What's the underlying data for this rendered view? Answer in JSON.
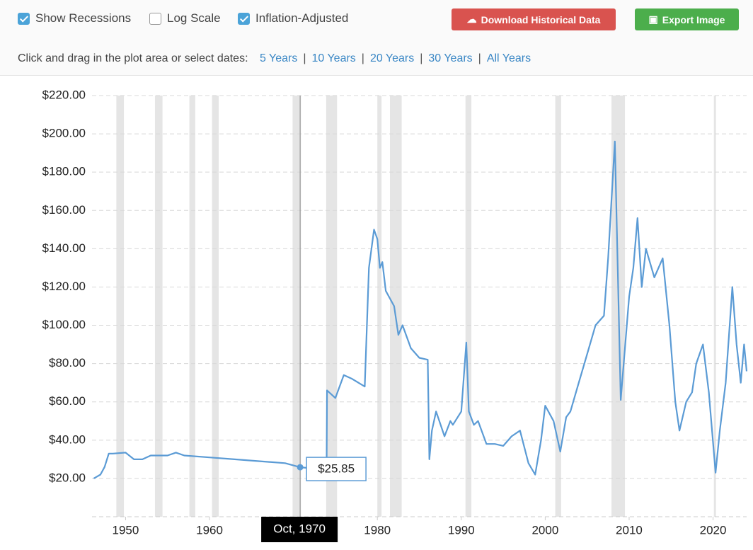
{
  "toolbar": {
    "checkboxes": [
      {
        "label": "Show Recessions",
        "checked": true
      },
      {
        "label": "Log Scale",
        "checked": false
      },
      {
        "label": "Inflation-Adjusted",
        "checked": true
      }
    ],
    "buttons": [
      "Download Historical Data",
      "Export Image"
    ],
    "prompt": "Click and drag in the plot area or select dates:",
    "ranges": [
      "5 Years",
      "10 Years",
      "20 Years",
      "30 Years",
      "All Years"
    ]
  },
  "chart_data": {
    "type": "line",
    "x": [
      1946.2,
      1947,
      1947.5,
      1948,
      1948.5,
      1950,
      1951,
      1952,
      1953,
      1955,
      1956,
      1957,
      1960,
      1963,
      1966,
      1969,
      1970.8,
      1973,
      1973.95,
      1974,
      1975,
      1976,
      1977,
      1978.5,
      1979,
      1979.6,
      1980,
      1980.3,
      1980.6,
      1981,
      1982,
      1982.5,
      1983,
      1984,
      1985,
      1986,
      1986.2,
      1986.5,
      1987,
      1988,
      1988.7,
      1989,
      1990,
      1990.6,
      1990.9,
      1991.5,
      1992,
      1993,
      1994,
      1995,
      1996,
      1997,
      1998,
      1998.8,
      1999.5,
      2000,
      2001,
      2001.8,
      2002.5,
      2003,
      2004,
      2005,
      2006,
      2007,
      2007.5,
      2008.3,
      2008.8,
      2009,
      2010,
      2010.5,
      2011,
      2011.5,
      2012,
      2013,
      2014,
      2014.8,
      2015.5,
      2016,
      2016.8,
      2017.5,
      2018,
      2018.8,
      2019.5,
      2020.3,
      2020.8,
      2021.5,
      2022.3,
      2022.8,
      2023.3,
      2023.7,
      2024
    ],
    "series": [
      {
        "color": "#5b9bd5",
        "values": [
          20,
          22,
          26,
          33,
          33,
          33.5,
          30,
          30,
          32,
          32,
          33.5,
          32,
          31,
          30,
          29,
          28,
          25.85,
          25,
          26,
          66,
          62,
          74,
          72,
          68,
          130,
          150,
          145,
          130,
          133,
          118,
          110,
          95,
          100,
          88,
          83,
          82,
          30,
          45,
          55,
          42,
          50,
          48,
          55,
          91,
          55,
          48,
          50,
          38,
          38,
          37,
          42,
          45,
          28,
          22,
          40,
          58,
          50,
          34,
          52,
          55,
          70,
          85,
          100,
          105,
          135,
          196,
          100,
          61,
          115,
          130,
          156,
          120,
          140,
          125,
          135,
          100,
          60,
          45,
          60,
          65,
          80,
          90,
          65,
          23,
          45,
          70,
          120,
          90,
          70,
          90,
          76
        ]
      }
    ],
    "recessions": [
      [
        1948.9,
        1949.8
      ],
      [
        1953.5,
        1954.4
      ],
      [
        1957.6,
        1958.3
      ],
      [
        1960.3,
        1961.1
      ],
      [
        1969.9,
        1970.9
      ],
      [
        1973.9,
        1975.2
      ],
      [
        1980.0,
        1980.5
      ],
      [
        1981.5,
        1982.9
      ],
      [
        1990.5,
        1991.2
      ],
      [
        2001.2,
        2001.9
      ],
      [
        2007.9,
        2009.5
      ],
      [
        2020.1,
        2020.3
      ]
    ],
    "xlim": [
      1946,
      2024
    ],
    "xticks": [
      1950,
      1960,
      1970,
      1980,
      1990,
      2000,
      2010,
      2020
    ],
    "ylim": [
      0,
      220
    ],
    "yticks": [
      {
        "value": 20,
        "label": "$20.00"
      },
      {
        "value": 40,
        "label": "$40.00"
      },
      {
        "value": 60,
        "label": "$60.00"
      },
      {
        "value": 80,
        "label": "$80.00"
      },
      {
        "value": 100,
        "label": "$100.00"
      },
      {
        "value": 120,
        "label": "$120.00"
      },
      {
        "value": 140,
        "label": "$140.00"
      },
      {
        "value": 160,
        "label": "$160.00"
      },
      {
        "value": 180,
        "label": "$180.00"
      },
      {
        "value": 200,
        "label": "$200.00"
      },
      {
        "value": 220,
        "label": "$220.00"
      }
    ],
    "grid": true,
    "tooltip": {
      "x": 1970.8,
      "x_label": "Oct, 1970",
      "value": 25.85,
      "value_label": "$25.85"
    }
  }
}
